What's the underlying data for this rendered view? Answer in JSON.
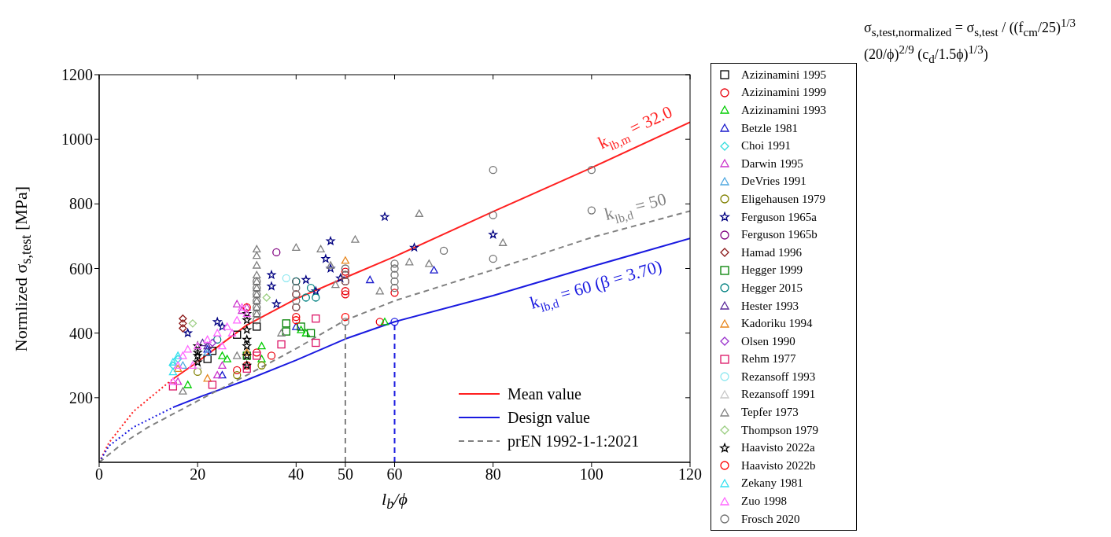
{
  "chart_data": {
    "type": "scatter",
    "xlabel": "l$_{b}$/ϕ",
    "ylabel": "Normlized σ$_{s,test}$  [MPa]",
    "xlim": [
      0,
      120
    ],
    "ylim": [
      0,
      1200
    ],
    "xticks": [
      0,
      20,
      40,
      50,
      60,
      80,
      100,
      120
    ],
    "yticks": [
      200,
      400,
      600,
      800,
      1000,
      1200
    ],
    "legend": "right",
    "annotations": [
      "k$_{lb,m}$ = 32.0",
      "k$_{lb,d}$ = 50",
      "k$_{lb,d}$ = 60 (β = 3.70)",
      "σ$_{s,test,normalized}$ = σ$_{s,test}$ / ((f$_{cm}$/25)$^{1/3}$ (20/ϕ)$^{2/9}$ (c$_{d}$/1.5ϕ)$^{1/3}$)"
    ],
    "series": [
      {
        "name": "Azizinamini 1995",
        "color": "#000000",
        "marker": "square",
        "x": [
          22,
          23,
          28,
          32
        ],
        "values": [
          320,
          345,
          395,
          420
        ]
      },
      {
        "name": "Azizinamini 1999",
        "color": "#e8000b",
        "marker": "circle",
        "x": [
          40,
          40,
          40,
          40,
          50,
          50,
          50,
          50,
          60,
          57,
          35,
          32,
          30,
          28
        ],
        "values": [
          560,
          520,
          480,
          450,
          590,
          560,
          530,
          520,
          525,
          435,
          330,
          340,
          300,
          285
        ]
      },
      {
        "name": "Azizinamini 1993",
        "color": "#00cc00",
        "marker": "triangle",
        "x": [
          18,
          25,
          26,
          33,
          33,
          41,
          42,
          58
        ],
        "values": [
          240,
          330,
          320,
          360,
          320,
          410,
          400,
          435
        ]
      },
      {
        "name": "Betzle 1981",
        "color": "#1a1acc",
        "marker": "triangle",
        "x": [
          22,
          25,
          40,
          55,
          68
        ],
        "values": [
          350,
          270,
          420,
          565,
          595
        ]
      },
      {
        "name": "Choi 1991",
        "color": "#33dddd",
        "marker": "diamond",
        "x": [
          15,
          16
        ],
        "values": [
          300,
          320
        ]
      },
      {
        "name": "Darwin 1995",
        "color": "#cc33cc",
        "marker": "triangle",
        "x": [
          16,
          24,
          25,
          28,
          29,
          30
        ],
        "values": [
          250,
          270,
          300,
          490,
          470,
          480
        ]
      },
      {
        "name": "DeVries 1991",
        "color": "#4fa8e0",
        "marker": "triangle",
        "x": [
          17,
          22
        ],
        "values": [
          300,
          340
        ]
      },
      {
        "name": "Eligehausen 1979",
        "color": "#808000",
        "marker": "circle",
        "x": [
          20,
          28,
          33
        ],
        "values": [
          280,
          270,
          300
        ]
      },
      {
        "name": "Ferguson 1965a",
        "color": "#000080",
        "marker": "star",
        "x": [
          18,
          24,
          25,
          35,
          35,
          36,
          42,
          44,
          46,
          47,
          47,
          49,
          58,
          64,
          80
        ],
        "values": [
          400,
          435,
          420,
          580,
          545,
          490,
          565,
          530,
          630,
          600,
          685,
          570,
          760,
          665,
          705
        ]
      },
      {
        "name": "Ferguson 1965b",
        "color": "#800080",
        "marker": "circle",
        "x": [
          36
        ],
        "values": [
          650
        ]
      },
      {
        "name": "Hamad 1996",
        "color": "#8b1a1a",
        "marker": "diamond",
        "x": [
          17,
          17,
          17
        ],
        "values": [
          445,
          430,
          415
        ]
      },
      {
        "name": "Hegger 1999",
        "color": "#008000",
        "marker": "square",
        "x": [
          38,
          38,
          41,
          43,
          30
        ],
        "values": [
          430,
          405,
          420,
          400,
          330
        ]
      },
      {
        "name": "Hegger 2015",
        "color": "#008080",
        "marker": "circle",
        "x": [
          40,
          43,
          44,
          42,
          24
        ],
        "values": [
          560,
          540,
          510,
          510,
          380
        ]
      },
      {
        "name": "Hester 1993",
        "color": "#5b2a9a",
        "marker": "triangle",
        "x": [
          21,
          22
        ],
        "values": [
          370,
          360
        ]
      },
      {
        "name": "Kadoriku 1994",
        "color": "#e8871e",
        "marker": "triangle",
        "x": [
          22,
          30,
          50,
          16
        ],
        "values": [
          260,
          340,
          625,
          290
        ]
      },
      {
        "name": "Olsen 1990",
        "color": "#9932cc",
        "marker": "diamond",
        "x": [
          23
        ],
        "values": [
          370
        ]
      },
      {
        "name": "Rehm 1977",
        "color": "#dc1466",
        "marker": "square",
        "x": [
          15,
          23,
          30,
          37,
          44,
          44,
          32
        ],
        "values": [
          235,
          240,
          290,
          365,
          370,
          445,
          330
        ]
      },
      {
        "name": "Rezansoff 1993",
        "color": "#8fe8f0",
        "marker": "circle",
        "x": [
          38
        ],
        "values": [
          570
        ]
      },
      {
        "name": "Rezansoff 1991",
        "color": "#c8c8c8",
        "marker": "triangle",
        "x": [
          20
        ],
        "values": [
          300
        ]
      },
      {
        "name": "Tepfer 1973",
        "color": "#808080",
        "marker": "triangle",
        "x": [
          32,
          32,
          32,
          32,
          32,
          32,
          32,
          32,
          32,
          32,
          40,
          45,
          47,
          48,
          52,
          57,
          63,
          65,
          67,
          82,
          17,
          28,
          37
        ],
        "values": [
          660,
          640,
          610,
          580,
          560,
          540,
          520,
          500,
          480,
          460,
          665,
          660,
          610,
          550,
          690,
          530,
          620,
          770,
          615,
          680,
          220,
          330,
          400
        ]
      },
      {
        "name": "Thompson 1979",
        "color": "#9acd80",
        "marker": "diamond",
        "x": [
          19,
          34
        ],
        "values": [
          430,
          510
        ]
      },
      {
        "name": "Haavisto 2022a",
        "color": "#000000",
        "marker": "star",
        "x": [
          20,
          20,
          20,
          20,
          30,
          30,
          30,
          30,
          30,
          30,
          30
        ],
        "values": [
          340,
          360,
          330,
          310,
          460,
          440,
          410,
          380,
          360,
          330,
          300
        ]
      },
      {
        "name": "Haavisto 2022b",
        "color": "#ff0000",
        "marker": "circle",
        "x": [
          50,
          30,
          40,
          50
        ],
        "values": [
          450,
          480,
          440,
          580
        ]
      },
      {
        "name": "Zekany 1981",
        "color": "#33e0f0",
        "marker": "triangle",
        "x": [
          15,
          15,
          16
        ],
        "values": [
          310,
          280,
          330
        ]
      },
      {
        "name": "Zuo 1998",
        "color": "#ff66ff",
        "marker": "triangle",
        "x": [
          15,
          16,
          17,
          18,
          19,
          20,
          22,
          24,
          25,
          26,
          27,
          28,
          29,
          30
        ],
        "values": [
          250,
          300,
          330,
          350,
          300,
          360,
          380,
          400,
          360,
          420,
          400,
          440,
          480,
          460
        ]
      },
      {
        "name": "Frosch 2020",
        "color": "#6e6e6e",
        "marker": "circle",
        "x": [
          32,
          32,
          32,
          32,
          32,
          32,
          32,
          40,
          40,
          40,
          40,
          50,
          50,
          50,
          60,
          60,
          60,
          60,
          60,
          70,
          80,
          80,
          80,
          100,
          100
        ],
        "values": [
          560,
          540,
          520,
          500,
          480,
          460,
          440,
          540,
          520,
          500,
          480,
          600,
          580,
          560,
          615,
          600,
          580,
          560,
          540,
          655,
          905,
          765,
          630,
          905,
          780
        ]
      },
      {
        "name": "Mean value",
        "type": "line",
        "color": "#ff2020",
        "line_style": "solid",
        "x": [
          15,
          20,
          30,
          40,
          50,
          60,
          80,
          100,
          120
        ],
        "values": [
          258,
          311,
          425,
          506,
          572,
          637,
          776,
          912,
          1053
        ]
      },
      {
        "type": "line",
        "color": "#ff2020",
        "line_style": "dotted",
        "x": [
          0,
          2,
          7,
          14,
          15
        ],
        "values": [
          0,
          61,
          158,
          246,
          258
        ]
      },
      {
        "name": "Design value",
        "type": "line",
        "color": "#1a1ae0",
        "line_style": "solid",
        "x": [
          15,
          20,
          30,
          40,
          50,
          60,
          80,
          100,
          120
        ],
        "values": [
          170,
          200,
          255,
          316,
          382,
          435,
          516,
          606,
          693
        ]
      },
      {
        "type": "line",
        "color": "#1a1ae0",
        "line_style": "dotted",
        "x": [
          0,
          2,
          7,
          15
        ],
        "values": [
          0,
          51,
          109,
          170
        ]
      },
      {
        "name": "prEN 1992-1-1:2021",
        "type": "line",
        "color": "#808080",
        "line_style": "dashed",
        "x": [
          0,
          5,
          10,
          20,
          30,
          40,
          50,
          60,
          80,
          100,
          120
        ],
        "values": [
          0,
          61,
          109,
          190,
          270,
          352,
          440,
          500,
          596,
          696,
          778
        ]
      },
      {
        "type": "line",
        "color": "#808080",
        "line_style": "dashed",
        "x": [
          50,
          50
        ],
        "values": [
          0,
          435
        ]
      },
      {
        "type": "line",
        "color": "#1a1ae0",
        "line_style": "dashed",
        "x": [
          60,
          60
        ],
        "values": [
          0,
          435
        ]
      },
      {
        "type": "scatter",
        "color": "#808080",
        "marker": "circle",
        "x": [
          50
        ],
        "values": [
          435
        ]
      },
      {
        "type": "scatter",
        "color": "#1a1ae0",
        "marker": "circle",
        "x": [
          60
        ],
        "values": [
          435
        ]
      }
    ]
  }
}
